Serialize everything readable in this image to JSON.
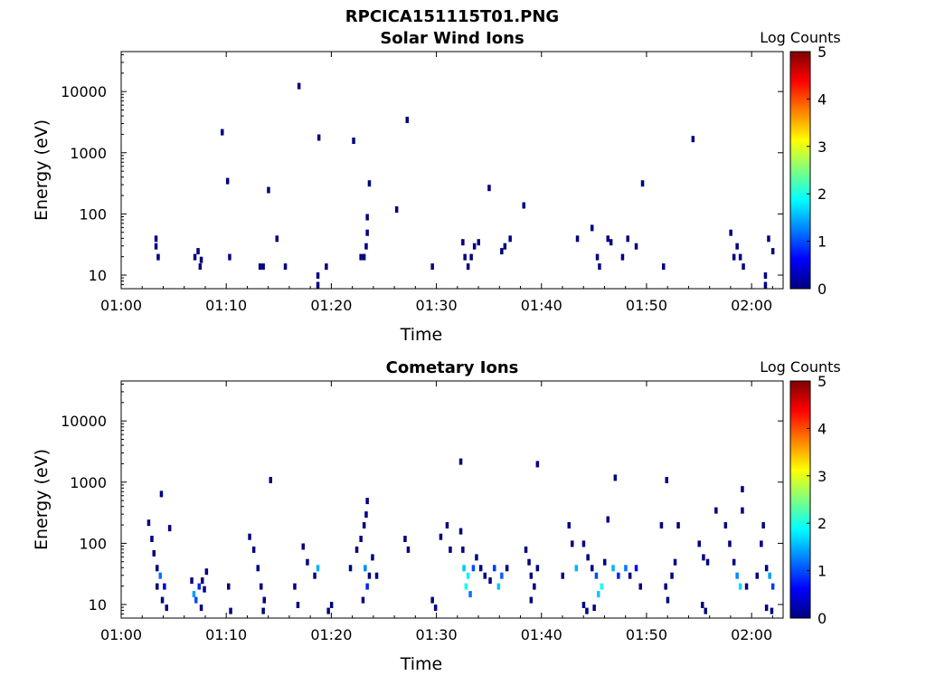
{
  "figure_title": "RPCICA151115T01.PNG",
  "chart_data": [
    {
      "type": "heatmap",
      "title": "Solar Wind Ions",
      "xlabel": "Time",
      "ylabel": "Energy (eV)",
      "x_ticks": [
        "01:00",
        "01:10",
        "01:20",
        "01:30",
        "01:40",
        "01:50",
        "02:00"
      ],
      "y_ticks": [
        "10",
        "100",
        "1000",
        "10000"
      ],
      "y_scale": "log",
      "colorbar_label": "Log Counts",
      "colorbar_ticks": [
        "0",
        "1",
        "2",
        "3",
        "4",
        "5"
      ],
      "colorbar_range": [
        0,
        5
      ],
      "points": [
        [
          3.3,
          40,
          0
        ],
        [
          3.3,
          30,
          0
        ],
        [
          3.5,
          20,
          0
        ],
        [
          7.0,
          20,
          0
        ],
        [
          7.3,
          25,
          0
        ],
        [
          7.6,
          18,
          0
        ],
        [
          7.5,
          14,
          0
        ],
        [
          10.3,
          20,
          0
        ],
        [
          13.2,
          14,
          0
        ],
        [
          13.5,
          14,
          0
        ],
        [
          15.6,
          14,
          0
        ],
        [
          14.8,
          40,
          0
        ],
        [
          18.7,
          10,
          0
        ],
        [
          18.7,
          7,
          0
        ],
        [
          19.5,
          14,
          0
        ],
        [
          22.8,
          20,
          0
        ],
        [
          23.1,
          20,
          0
        ],
        [
          23.3,
          30,
          0
        ],
        [
          23.4,
          50,
          0
        ],
        [
          23.4,
          90,
          0
        ],
        [
          29.6,
          14,
          0
        ],
        [
          32.5,
          35,
          0
        ],
        [
          32.7,
          20,
          0
        ],
        [
          33.0,
          14,
          0
        ],
        [
          33.3,
          20,
          0
        ],
        [
          33.6,
          30,
          0
        ],
        [
          34.0,
          35,
          0
        ],
        [
          36.2,
          25,
          0
        ],
        [
          36.5,
          30,
          0
        ],
        [
          37.0,
          40,
          0
        ],
        [
          43.4,
          40,
          0
        ],
        [
          44.8,
          60,
          0
        ],
        [
          45.3,
          20,
          0
        ],
        [
          45.5,
          14,
          0
        ],
        [
          46.3,
          40,
          0
        ],
        [
          46.6,
          35,
          0
        ],
        [
          47.7,
          20,
          0
        ],
        [
          48.2,
          40,
          0
        ],
        [
          49.0,
          30,
          0
        ],
        [
          51.6,
          14,
          0
        ],
        [
          58.0,
          50,
          0
        ],
        [
          58.3,
          20,
          0
        ],
        [
          58.6,
          30,
          0
        ],
        [
          58.9,
          20,
          0
        ],
        [
          59.2,
          14,
          0
        ],
        [
          61.3,
          10,
          0
        ],
        [
          61.3,
          7,
          0
        ],
        [
          61.6,
          40,
          0
        ],
        [
          62.0,
          25,
          0
        ],
        [
          9.6,
          2200,
          0
        ],
        [
          10.1,
          350,
          0
        ],
        [
          14.0,
          250,
          0
        ],
        [
          16.9,
          12500,
          0
        ],
        [
          18.8,
          1800,
          0
        ],
        [
          22.1,
          1600,
          0
        ],
        [
          23.6,
          320,
          0
        ],
        [
          26.2,
          120,
          0
        ],
        [
          27.2,
          3500,
          0
        ],
        [
          35.0,
          270,
          0
        ],
        [
          38.3,
          140,
          0
        ],
        [
          49.6,
          320,
          0
        ],
        [
          54.4,
          1700,
          0
        ]
      ]
    },
    {
      "type": "heatmap",
      "title": "Cometary Ions",
      "xlabel": "Time",
      "ylabel": "Energy (eV)",
      "x_ticks": [
        "01:00",
        "01:10",
        "01:20",
        "01:30",
        "01:40",
        "01:50",
        "02:00"
      ],
      "y_ticks": [
        "10",
        "100",
        "1000",
        "10000"
      ],
      "y_scale": "log",
      "colorbar_label": "Log Counts",
      "colorbar_ticks": [
        "0",
        "1",
        "2",
        "3",
        "4",
        "5"
      ],
      "colorbar_range": [
        0,
        5
      ],
      "points": [
        [
          2.6,
          220,
          0
        ],
        [
          2.9,
          120,
          0
        ],
        [
          3.1,
          70,
          0
        ],
        [
          3.4,
          40,
          0
        ],
        [
          3.4,
          20,
          0
        ],
        [
          3.7,
          30,
          1.2
        ],
        [
          3.9,
          12,
          0
        ],
        [
          4.1,
          20,
          0.5
        ],
        [
          4.3,
          9,
          0
        ],
        [
          3.8,
          650,
          0
        ],
        [
          4.6,
          180,
          0
        ],
        [
          6.7,
          25,
          0
        ],
        [
          6.9,
          15,
          1.4
        ],
        [
          7.1,
          12,
          1.0
        ],
        [
          7.4,
          20,
          0.8
        ],
        [
          7.7,
          25,
          0
        ],
        [
          7.9,
          18,
          0
        ],
        [
          8.1,
          35,
          0
        ],
        [
          7.6,
          9,
          0
        ],
        [
          10.2,
          20,
          0
        ],
        [
          10.4,
          8,
          0
        ],
        [
          12.2,
          130,
          0
        ],
        [
          12.6,
          80,
          0
        ],
        [
          13.0,
          40,
          0
        ],
        [
          13.3,
          20,
          0
        ],
        [
          13.6,
          12,
          0
        ],
        [
          13.5,
          8,
          0
        ],
        [
          14.2,
          1100,
          0
        ],
        [
          16.5,
          20,
          0
        ],
        [
          16.8,
          10,
          0
        ],
        [
          17.3,
          90,
          0
        ],
        [
          17.7,
          50,
          0
        ],
        [
          18.4,
          30,
          0
        ],
        [
          18.7,
          40,
          1.5
        ],
        [
          20.0,
          10,
          0
        ],
        [
          19.7,
          8,
          0
        ],
        [
          21.8,
          40,
          0
        ],
        [
          22.4,
          80,
          0
        ],
        [
          22.8,
          120,
          0
        ],
        [
          23.1,
          200,
          0
        ],
        [
          23.3,
          300,
          0
        ],
        [
          23.4,
          500,
          0
        ],
        [
          23.2,
          40,
          1.3
        ],
        [
          23.4,
          20,
          0.8
        ],
        [
          23.6,
          30,
          0
        ],
        [
          23.9,
          60,
          0
        ],
        [
          24.3,
          30,
          0
        ],
        [
          23.0,
          12,
          0
        ],
        [
          27.0,
          120,
          0
        ],
        [
          27.3,
          80,
          0
        ],
        [
          30.4,
          130,
          0
        ],
        [
          31.0,
          200,
          0
        ],
        [
          31.3,
          80,
          0
        ],
        [
          32.3,
          160,
          0
        ],
        [
          32.5,
          80,
          0
        ],
        [
          32.6,
          40,
          1.6
        ],
        [
          32.8,
          20,
          2.0
        ],
        [
          33.0,
          30,
          1.8
        ],
        [
          33.2,
          15,
          1.2
        ],
        [
          33.5,
          40,
          1.0
        ],
        [
          33.8,
          60,
          0
        ],
        [
          34.2,
          40,
          0
        ],
        [
          34.6,
          30,
          0
        ],
        [
          32.3,
          2200,
          0
        ],
        [
          29.6,
          12,
          0
        ],
        [
          29.9,
          9,
          0
        ],
        [
          35.1,
          25,
          0
        ],
        [
          35.5,
          40,
          0.9
        ],
        [
          35.9,
          20,
          1.6
        ],
        [
          36.2,
          30,
          1.1
        ],
        [
          36.7,
          40,
          0
        ],
        [
          38.5,
          80,
          0
        ],
        [
          38.8,
          50,
          0
        ],
        [
          39.0,
          30,
          0
        ],
        [
          39.3,
          20,
          0
        ],
        [
          39.6,
          40,
          0
        ],
        [
          39.6,
          2000,
          0
        ],
        [
          39.0,
          12,
          0
        ],
        [
          42.0,
          30,
          0
        ],
        [
          42.6,
          200,
          0
        ],
        [
          42.9,
          100,
          0
        ],
        [
          43.3,
          40,
          1.5
        ],
        [
          44.0,
          100,
          0
        ],
        [
          44.4,
          60,
          0
        ],
        [
          44.8,
          40,
          0
        ],
        [
          45.2,
          30,
          1.0
        ],
        [
          45.4,
          15,
          1.6
        ],
        [
          45.7,
          20,
          2.0
        ],
        [
          46.0,
          50,
          0
        ],
        [
          46.3,
          250,
          0
        ],
        [
          46.8,
          40,
          1.5
        ],
        [
          47.0,
          1200,
          0
        ],
        [
          47.3,
          30,
          0.8
        ],
        [
          48.0,
          40,
          1.2
        ],
        [
          48.4,
          30,
          0
        ],
        [
          49.0,
          40,
          0.6
        ],
        [
          49.4,
          20,
          0
        ],
        [
          44.0,
          10,
          0
        ],
        [
          44.3,
          8,
          0
        ],
        [
          45.0,
          9,
          0
        ],
        [
          51.4,
          200,
          0
        ],
        [
          51.8,
          20,
          0
        ],
        [
          52.0,
          12,
          0
        ],
        [
          51.9,
          1100,
          0
        ],
        [
          52.4,
          30,
          0
        ],
        [
          52.7,
          50,
          0
        ],
        [
          53.0,
          200,
          0
        ],
        [
          55.0,
          100,
          0
        ],
        [
          55.4,
          60,
          0
        ],
        [
          55.8,
          50,
          0
        ],
        [
          55.3,
          10,
          0
        ],
        [
          55.6,
          8,
          0
        ],
        [
          56.6,
          350,
          0
        ],
        [
          57.5,
          200,
          0
        ],
        [
          57.9,
          100,
          0
        ],
        [
          58.3,
          50,
          0
        ],
        [
          58.6,
          30,
          1.3
        ],
        [
          58.9,
          20,
          1.7
        ],
        [
          59.1,
          350,
          0
        ],
        [
          59.1,
          780,
          0
        ],
        [
          59.5,
          20,
          0
        ],
        [
          60.5,
          30,
          0
        ],
        [
          60.9,
          100,
          0
        ],
        [
          61.1,
          200,
          0
        ],
        [
          61.4,
          40,
          0
        ],
        [
          61.7,
          30,
          1.4
        ],
        [
          62.0,
          20,
          0.9
        ],
        [
          61.4,
          9,
          0
        ],
        [
          61.9,
          8,
          0
        ]
      ]
    }
  ]
}
